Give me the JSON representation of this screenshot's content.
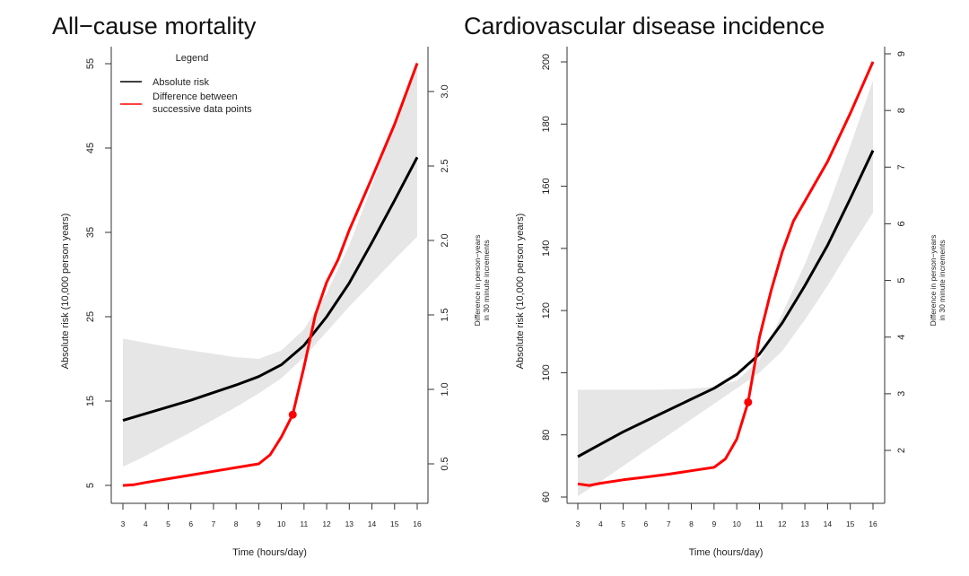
{
  "chart_data": [
    {
      "type": "line",
      "title": "All−cause mortality",
      "xlabel": "Time (hours/day)",
      "ylabel": "Absolute risk (10,000 person years)",
      "ylabel_right": [
        "Difference in person−years",
        "in 30 minute increments"
      ],
      "xlim": [
        3,
        16
      ],
      "xticks": [
        3,
        4,
        5,
        6,
        7,
        8,
        9,
        10,
        11,
        12,
        13,
        14,
        15,
        16
      ],
      "ylim": [
        5,
        55
      ],
      "yticks": [
        5,
        15,
        25,
        35,
        45,
        55
      ],
      "ylim_right": [
        0.5,
        3.0
      ],
      "yticks_right": [
        "0.5",
        "1.0",
        "1.5",
        "2.0",
        "2.5",
        "3.0"
      ],
      "grid": false,
      "legend": {
        "title": "Legend",
        "placement": "top-left",
        "entries": [
          {
            "label": "Absolute risk",
            "color": "#000000"
          },
          {
            "label": "Difference between",
            "label2": "successive data points",
            "color": "#ff0000"
          }
        ]
      },
      "series": [
        {
          "name": "Absolute risk",
          "axis": "left",
          "color": "#000000",
          "x": [
            3,
            4,
            5,
            6,
            7,
            8,
            9,
            10,
            11,
            12,
            13,
            14,
            15,
            16
          ],
          "y": [
            12.7,
            13.5,
            14.3,
            15.1,
            16.0,
            16.9,
            17.9,
            19.3,
            21.6,
            25.0,
            29.0,
            33.8,
            38.8,
            43.9
          ]
        },
        {
          "name": "Confidence band",
          "axis": "left",
          "type": "area",
          "color": "#e6e6e6",
          "x": [
            3,
            4,
            5,
            6,
            7,
            8,
            9,
            10,
            11,
            12,
            13,
            14,
            15,
            16
          ],
          "upper": [
            22.4,
            21.9,
            21.4,
            21.0,
            20.6,
            20.2,
            20.0,
            21.0,
            23.5,
            27.8,
            33.5,
            40.5,
            48.0,
            55.5
          ],
          "lower": [
            7.2,
            8.5,
            9.9,
            11.3,
            12.8,
            14.3,
            15.9,
            17.7,
            20.2,
            23.2,
            26.2,
            29.0,
            31.8,
            34.5
          ]
        },
        {
          "name": "Difference between successive data points",
          "axis": "right",
          "color": "#ff0000",
          "x": [
            3,
            3.5,
            4,
            5,
            6,
            7,
            8,
            9,
            9.5,
            10,
            10.5,
            11,
            11.5,
            12,
            12.5,
            13,
            14,
            15,
            16
          ],
          "y": [
            0.355,
            0.36,
            0.375,
            0.4,
            0.425,
            0.45,
            0.475,
            0.5,
            0.56,
            0.68,
            0.83,
            1.15,
            1.5,
            1.72,
            1.87,
            2.07,
            2.42,
            2.78,
            3.19
          ]
        }
      ],
      "marker": {
        "x": 10.5,
        "y": 0.83,
        "axis": "right",
        "color": "#ff0000"
      }
    },
    {
      "type": "line",
      "title": "Cardiovascular disease incidence",
      "xlabel": "Time (hours/day)",
      "ylabel": "Absolute risk (10,000 person years)",
      "ylabel_right": [
        "Difference in person−years",
        "in 30 minute increments"
      ],
      "xlim": [
        3,
        16
      ],
      "xticks": [
        3,
        4,
        5,
        6,
        7,
        8,
        9,
        10,
        11,
        12,
        13,
        14,
        15,
        16
      ],
      "ylim": [
        60,
        200
      ],
      "yticks": [
        60,
        80,
        100,
        120,
        140,
        160,
        180,
        200
      ],
      "ylim_right": [
        2,
        9
      ],
      "yticks_right": [
        "2",
        "3",
        "4",
        "5",
        "6",
        "7",
        "8",
        "9"
      ],
      "grid": false,
      "series": [
        {
          "name": "Absolute risk",
          "axis": "left",
          "color": "#000000",
          "x": [
            3,
            4,
            5,
            6,
            7,
            8,
            9,
            10,
            11,
            12,
            13,
            14,
            15,
            16
          ],
          "y": [
            73,
            77,
            81,
            84.5,
            88,
            91.5,
            95,
            99.5,
            106,
            116,
            128,
            141,
            156,
            171.5
          ]
        },
        {
          "name": "Confidence band",
          "axis": "left",
          "type": "area",
          "color": "#e6e6e6",
          "x": [
            3,
            4,
            5,
            6,
            7,
            8,
            9,
            10,
            11,
            12,
            13,
            14,
            15,
            16
          ],
          "upper": [
            94.5,
            94.5,
            94.5,
            94.5,
            94.6,
            94.8,
            95.5,
            97.5,
            104,
            119,
            135,
            153,
            173,
            194
          ],
          "lower": [
            60.3,
            65,
            70,
            75,
            80,
            85,
            90,
            95,
            100,
            107,
            117,
            128,
            140,
            151.5
          ]
        },
        {
          "name": "Difference between successive data points",
          "axis": "right",
          "color": "#ff0000",
          "x": [
            3,
            3.5,
            4,
            5,
            6,
            7,
            8,
            9,
            9.5,
            10,
            10.5,
            11,
            11.5,
            12,
            12.5,
            13,
            14,
            15,
            16
          ],
          "y": [
            1.41,
            1.38,
            1.42,
            1.48,
            1.53,
            1.58,
            1.64,
            1.7,
            1.85,
            2.2,
            2.85,
            4.0,
            4.8,
            5.5,
            6.05,
            6.4,
            7.1,
            7.95,
            8.86
          ]
        }
      ],
      "marker": {
        "x": 10.5,
        "y": 2.85,
        "axis": "right",
        "color": "#ff0000"
      }
    }
  ]
}
